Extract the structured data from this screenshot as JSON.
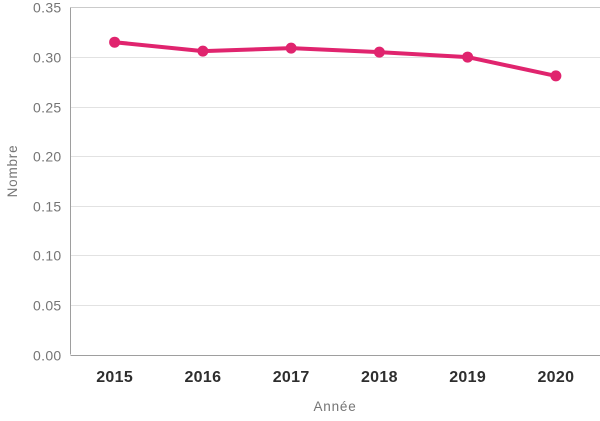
{
  "chart_data": {
    "type": "line",
    "title": "",
    "xlabel": "Année",
    "ylabel": "Nombre",
    "categories": [
      "2015",
      "2016",
      "2017",
      "2018",
      "2019",
      "2020"
    ],
    "series": [
      {
        "name": "Nombre",
        "values": [
          0.315,
          0.306,
          0.309,
          0.305,
          0.3,
          0.281
        ]
      }
    ],
    "ylim": [
      0,
      0.35
    ],
    "ytick_step": 0.05,
    "ytick_labels": [
      "0.00",
      "0.05",
      "0.10",
      "0.15",
      "0.20",
      "0.25",
      "0.30",
      "0.35"
    ],
    "grid": true,
    "legend": false,
    "line_color": "#E0246E",
    "point_color": "#E0246E"
  },
  "colors": {
    "accent": "#E0246E",
    "grid": "#e2e2e2",
    "axis": "#9e9e9e",
    "tick_y_text": "#757575",
    "tick_x_text": "#2e2e2e",
    "background": "#ffffff"
  }
}
